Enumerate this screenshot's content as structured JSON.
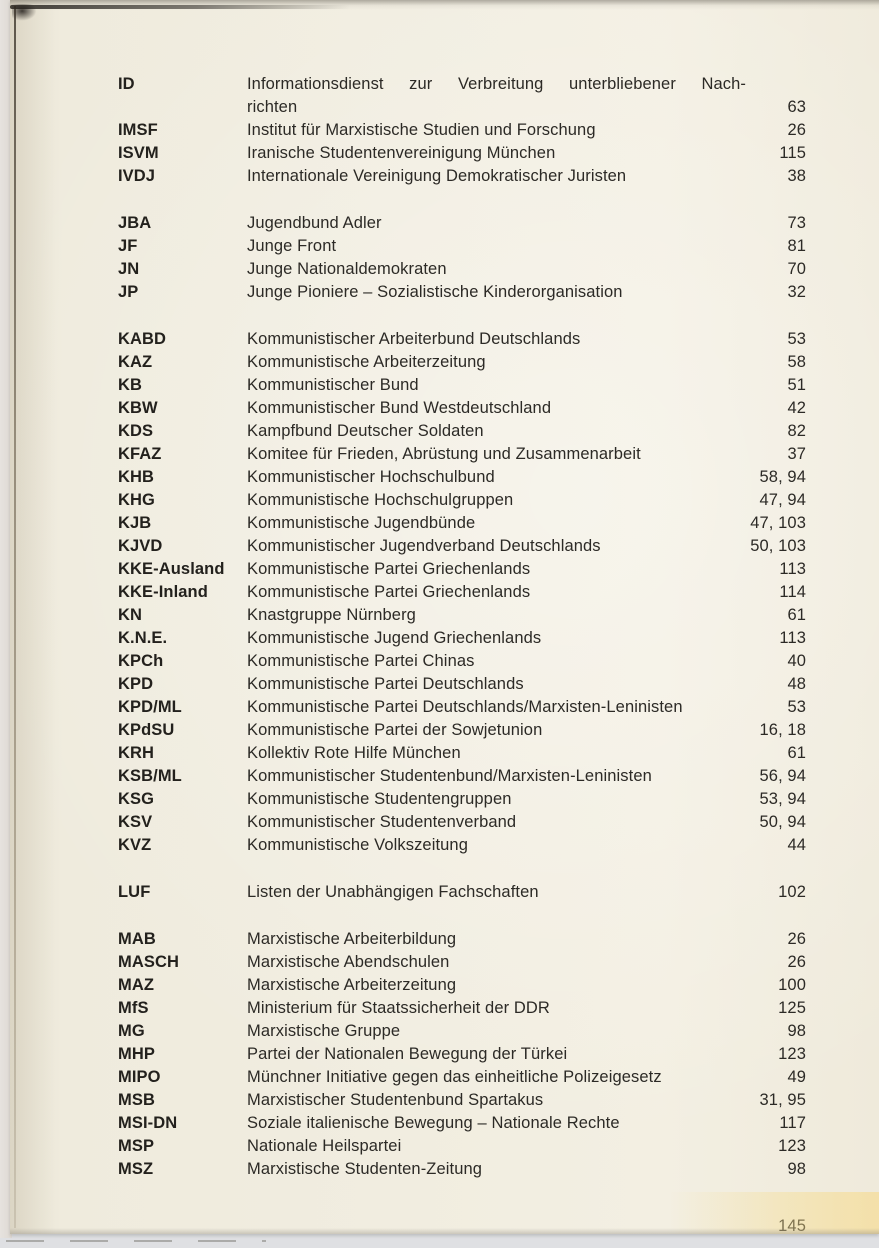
{
  "scan": {
    "paper_color": "#f1ede0",
    "background_color": "#dfe0e3",
    "text_color": "#2c2a26"
  },
  "index": {
    "page_number": "145",
    "groups": [
      {
        "entries": [
          {
            "abbr": "ID",
            "desc": "Informationsdienst zur Verbreitung unterbliebener Nach-",
            "desc2": "richten",
            "page": "63"
          },
          {
            "abbr": "IMSF",
            "desc": "Institut für Marxistische Studien und Forschung",
            "page": "26"
          },
          {
            "abbr": "ISVM",
            "desc": "Iranische Studentenvereinigung München",
            "page": "115"
          },
          {
            "abbr": "IVDJ",
            "desc": "Internationale Vereinigung Demokratischer Juristen",
            "page": "38"
          }
        ]
      },
      {
        "entries": [
          {
            "abbr": "JBA",
            "desc": "Jugendbund Adler",
            "page": "73"
          },
          {
            "abbr": "JF",
            "desc": "Junge Front",
            "page": "81"
          },
          {
            "abbr": "JN",
            "desc": "Junge Nationaldemokraten",
            "page": "70"
          },
          {
            "abbr": "JP",
            "desc": "Junge Pioniere – Sozialistische Kinderorganisation",
            "page": "32"
          }
        ]
      },
      {
        "entries": [
          {
            "abbr": "KABD",
            "desc": "Kommunistischer Arbeiterbund Deutschlands",
            "page": "53"
          },
          {
            "abbr": "KAZ",
            "desc": "Kommunistische Arbeiterzeitung",
            "page": "58"
          },
          {
            "abbr": "KB",
            "desc": "Kommunistischer Bund",
            "page": "51"
          },
          {
            "abbr": "KBW",
            "desc": "Kommunistischer Bund Westdeutschland",
            "page": "42"
          },
          {
            "abbr": "KDS",
            "desc": "Kampfbund Deutscher Soldaten",
            "page": "82"
          },
          {
            "abbr": "KFAZ",
            "desc": "Komitee für Frieden, Abrüstung und Zusammenarbeit",
            "page": "37"
          },
          {
            "abbr": "KHB",
            "desc": "Kommunistischer Hochschulbund",
            "page": "58, 94"
          },
          {
            "abbr": "KHG",
            "desc": "Kommunistische Hochschulgruppen",
            "page": "47, 94"
          },
          {
            "abbr": "KJB",
            "desc": "Kommunistische Jugendbünde",
            "page": "47, 103"
          },
          {
            "abbr": "KJVD",
            "desc": "Kommunistischer Jugendverband Deutschlands",
            "page": "50, 103"
          },
          {
            "abbr": "KKE-Ausland",
            "desc": "Kommunistische Partei Griechenlands",
            "page": "113"
          },
          {
            "abbr": "KKE-Inland",
            "desc": "Kommunistische Partei Griechenlands",
            "page": "114"
          },
          {
            "abbr": "KN",
            "desc": "Knastgruppe Nürnberg",
            "page": "61"
          },
          {
            "abbr": "K.N.E.",
            "desc": "Kommunistische Jugend Griechenlands",
            "page": "113"
          },
          {
            "abbr": "KPCh",
            "desc": "Kommunistische Partei Chinas",
            "page": "40"
          },
          {
            "abbr": "KPD",
            "desc": "Kommunistische Partei Deutschlands",
            "page": "48"
          },
          {
            "abbr": "KPD/ML",
            "desc": "Kommunistische Partei Deutschlands/Marxisten-Leninisten",
            "page": "53"
          },
          {
            "abbr": "KPdSU",
            "desc": "Kommunistische Partei der Sowjetunion",
            "page": "16, 18"
          },
          {
            "abbr": "KRH",
            "desc": "Kollektiv Rote Hilfe München",
            "page": "61"
          },
          {
            "abbr": "KSB/ML",
            "desc": "Kommunistischer Studentenbund/Marxisten-Leninisten",
            "page": "56, 94"
          },
          {
            "abbr": "KSG",
            "desc": "Kommunistische Studentengruppen",
            "page": "53, 94"
          },
          {
            "abbr": "KSV",
            "desc": "Kommunistischer Studentenverband",
            "page": "50, 94"
          },
          {
            "abbr": "KVZ",
            "desc": "Kommunistische Volkszeitung",
            "page": "44"
          }
        ]
      },
      {
        "entries": [
          {
            "abbr": "LUF",
            "desc": "Listen der Unabhängigen Fachschaften",
            "page": "102"
          }
        ]
      },
      {
        "entries": [
          {
            "abbr": "MAB",
            "desc": "Marxistische Arbeiterbildung",
            "page": "26"
          },
          {
            "abbr": "MASCH",
            "desc": "Marxistische Abendschulen",
            "page": "26"
          },
          {
            "abbr": "MAZ",
            "desc": "Marxistische Arbeiterzeitung",
            "page": "100"
          },
          {
            "abbr": "MfS",
            "desc": "Ministerium für Staatssicherheit der DDR",
            "page": "125"
          },
          {
            "abbr": "MG",
            "desc": "Marxistische Gruppe",
            "page": "98"
          },
          {
            "abbr": "MHP",
            "desc": "Partei der Nationalen Bewegung der Türkei",
            "page": "123"
          },
          {
            "abbr": "MIPO",
            "desc": "Münchner Initiative gegen das einheitliche Polizeigesetz",
            "page": "49"
          },
          {
            "abbr": "MSB",
            "desc": "Marxistischer Studentenbund Spartakus",
            "page": "31, 95"
          },
          {
            "abbr": "MSI-DN",
            "desc": "Soziale italienische Bewegung – Nationale Rechte",
            "page": "117"
          },
          {
            "abbr": "MSP",
            "desc": "Nationale Heilspartei",
            "page": "123"
          },
          {
            "abbr": "MSZ",
            "desc": "Marxistische Studenten-Zeitung",
            "page": "98"
          }
        ]
      }
    ]
  }
}
